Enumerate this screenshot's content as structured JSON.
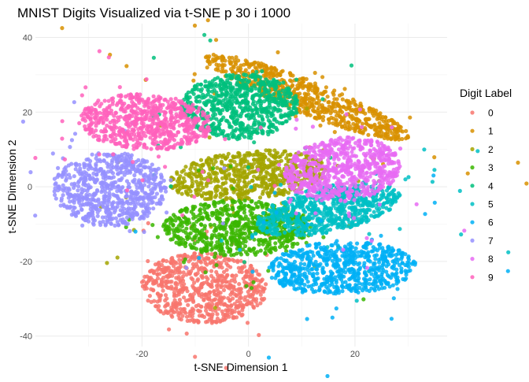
{
  "chart_data": {
    "type": "scatter",
    "title": "MNIST Digits Visualized via t-SNE p 30 i 1000",
    "xlabel": "t-SNE Dimension 1",
    "ylabel": "t-SNE Dimension 2",
    "xlim": [
      -40,
      37.3
    ],
    "ylim": [
      -42.8,
      43.7
    ],
    "xticks": [
      -20,
      0,
      20
    ],
    "yticks": [
      -40,
      -20,
      0,
      20,
      40
    ],
    "grid": true,
    "legend": {
      "title": "Digit Label",
      "placement": "right"
    },
    "series": [
      {
        "name": "0",
        "color": "#F8766D",
        "cx": -8.3,
        "cy": -27,
        "rx": 11.8,
        "ry": 9.5,
        "angle": -5
      },
      {
        "name": "1",
        "color": "#D89000",
        "cx": 11,
        "cy": 24,
        "rx": 22,
        "ry": 4.2,
        "angle": -30
      },
      {
        "name": "2",
        "color": "#A3A500",
        "cx": 0,
        "cy": 3,
        "rx": 15,
        "ry": 6.5,
        "angle": 8
      },
      {
        "name": "3",
        "color": "#39B600",
        "cx": -2,
        "cy": -11,
        "rx": 14,
        "ry": 7.5,
        "angle": 0
      },
      {
        "name": "4",
        "color": "#00BF7D",
        "cx": -1.5,
        "cy": 21.5,
        "rx": 11,
        "ry": 8.8,
        "angle": 0
      },
      {
        "name": "5",
        "color": "#00BFC4",
        "cx": 15,
        "cy": -6,
        "rx": 14,
        "ry": 6,
        "angle": 18
      },
      {
        "name": "6",
        "color": "#00B0F6",
        "cx": 17.6,
        "cy": -21.7,
        "rx": 14,
        "ry": 7,
        "angle": 3
      },
      {
        "name": "7",
        "color": "#9590FF",
        "cx": -26,
        "cy": -0.6,
        "rx": 10.5,
        "ry": 10,
        "angle": 0
      },
      {
        "name": "8",
        "color": "#E76BF3",
        "cx": 17.6,
        "cy": 4.6,
        "rx": 11,
        "ry": 8.5,
        "angle": 15
      },
      {
        "name": "9",
        "color": "#FF62BC",
        "cx": -19.4,
        "cy": 17.3,
        "rx": 12.5,
        "ry": 7.5,
        "angle": -5
      }
    ]
  }
}
